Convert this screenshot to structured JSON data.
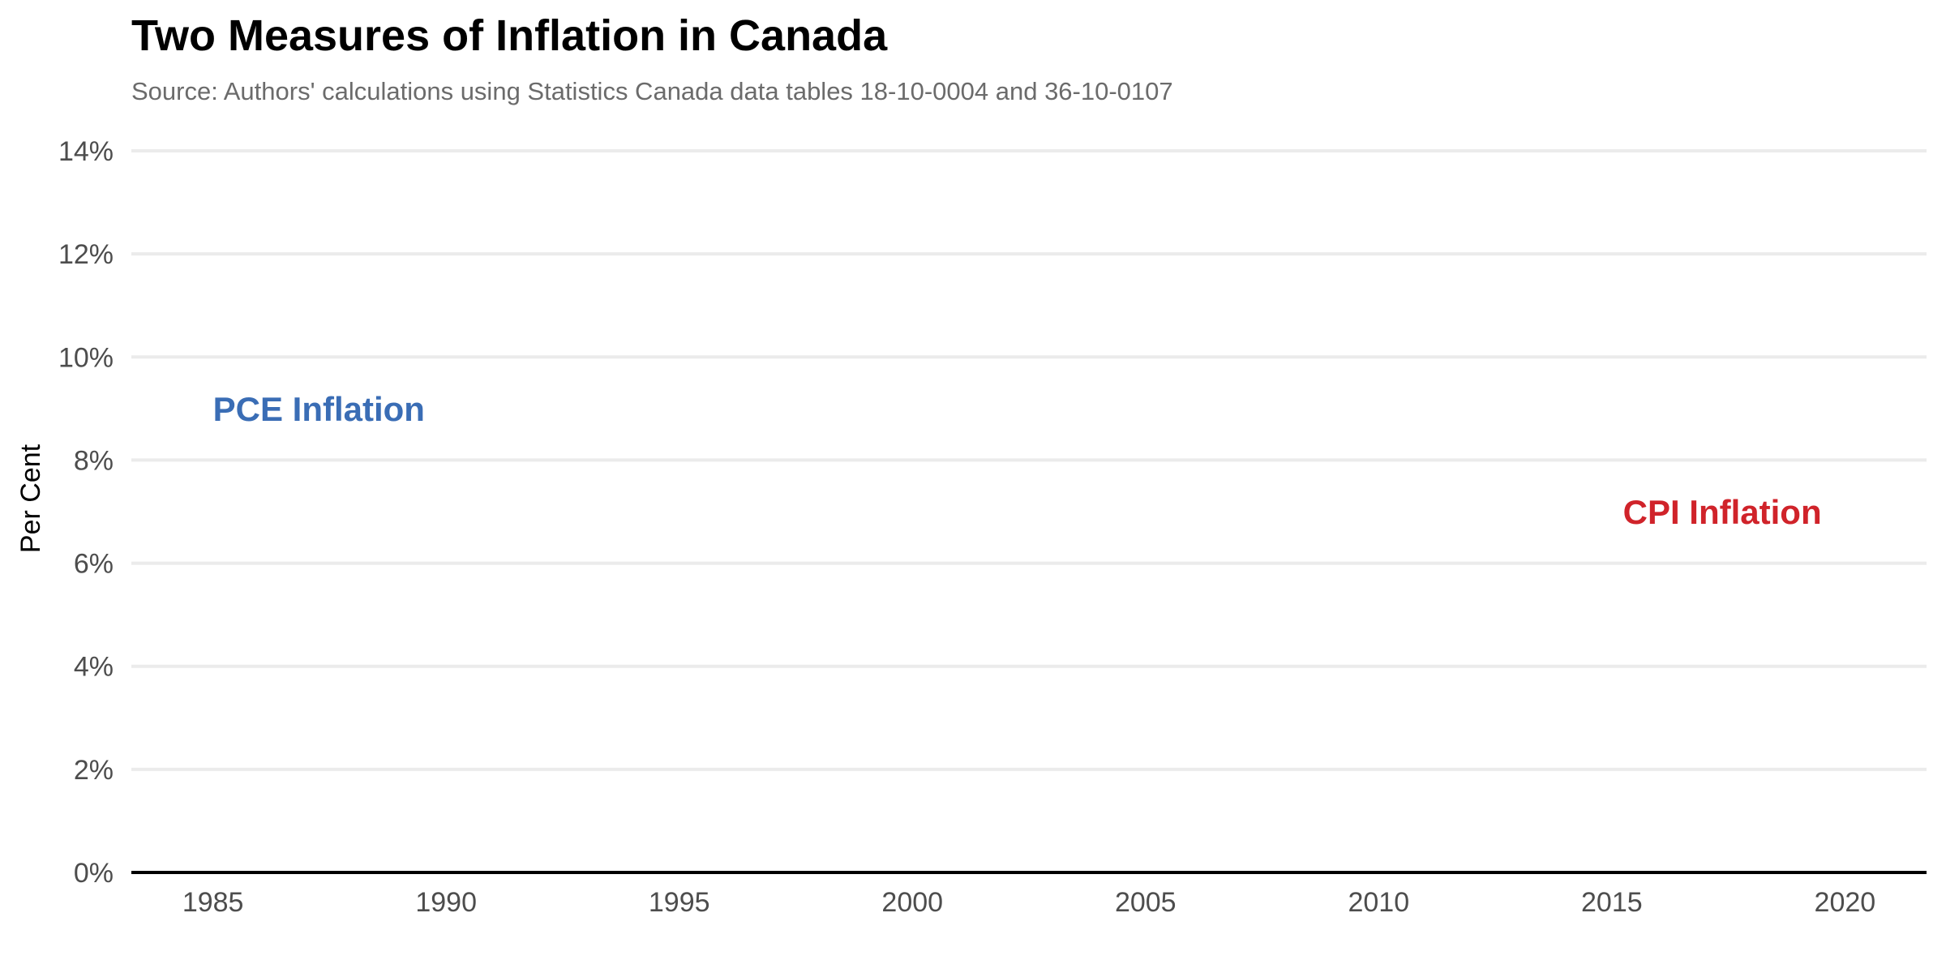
{
  "chart_data": {
    "type": "line",
    "title": "Two Measures of Inflation in Canada",
    "subtitle": "Source: Authors' calculations using Statistics Canada data tables 18-10-0004 and 36-10-0107",
    "xlabel": "",
    "ylabel": "Per Cent",
    "xlim": [
      1983.25,
      2021.75
    ],
    "ylim": [
      0,
      14
    ],
    "x_ticks": [
      1985,
      1990,
      1995,
      2000,
      2005,
      2010,
      2015,
      2020
    ],
    "x_tick_labels": [
      "1985",
      "1990",
      "1995",
      "2000",
      "2005",
      "2010",
      "2015",
      "2020"
    ],
    "y_ticks": [
      0,
      2,
      4,
      6,
      8,
      10,
      12,
      14
    ],
    "y_tick_labels": [
      "0%",
      "2%",
      "4%",
      "6%",
      "8%",
      "10%",
      "12%",
      "14%"
    ],
    "grid": "horizontal",
    "legend": "none",
    "series": [
      {
        "name": "PCE Inflation",
        "color": "#3a6db5",
        "x": [],
        "y": []
      },
      {
        "name": "CPI Inflation",
        "color": "#d0232a",
        "x": [],
        "y": []
      }
    ],
    "annotations": [
      {
        "text": "PCE Inflation",
        "x": 1985,
        "y": 9,
        "color": "#3a6db5",
        "anchor": "start"
      },
      {
        "text": "CPI Inflation",
        "x": 2019.5,
        "y": 7,
        "color": "#d0232a",
        "anchor": "end"
      }
    ]
  }
}
